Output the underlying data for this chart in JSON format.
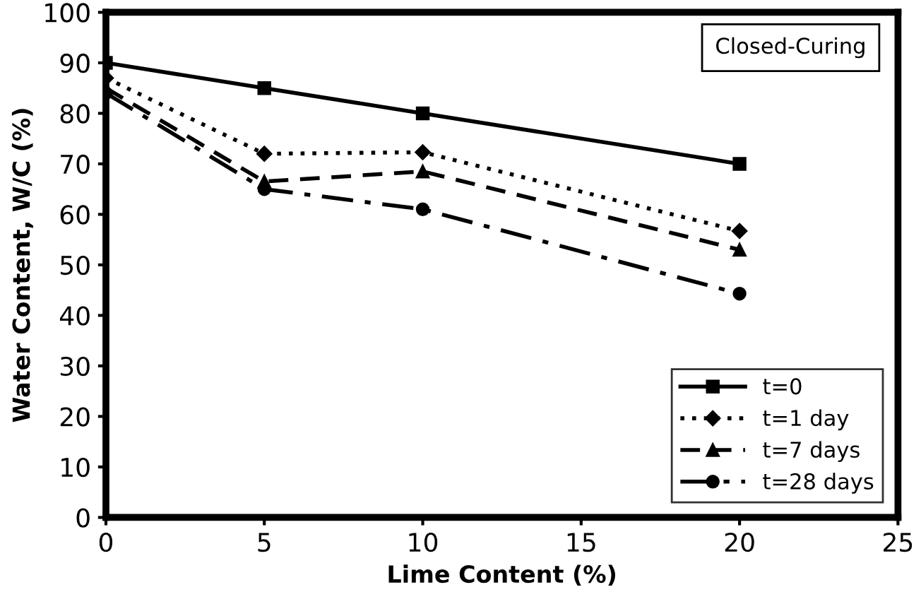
{
  "chart_data": {
    "type": "line",
    "xlabel": "Lime Content (%)",
    "ylabel": "Water Content, W/C (%)",
    "x": [
      0,
      5,
      10,
      20
    ],
    "series": [
      {
        "name": "t=0",
        "color": "#000000",
        "values": [
          90,
          85,
          80,
          70
        ],
        "marker": "square",
        "line_style": "solid"
      },
      {
        "name": "t=1 day",
        "color": "#000000",
        "values": [
          87,
          72,
          72.3,
          56.7
        ],
        "marker": "diamond",
        "line_style": "dotted"
      },
      {
        "name": "t=7 days",
        "color": "#000000",
        "values": [
          85,
          66.5,
          68.5,
          53
        ],
        "marker": "triangle",
        "line_style": "dashed"
      },
      {
        "name": "t=28 days",
        "color": "#000000",
        "values": [
          84,
          65,
          61,
          44.3
        ],
        "marker": "circle",
        "line_style": "dashdot"
      }
    ],
    "xlim": [
      0,
      25
    ],
    "xticks": [
      0,
      5,
      10,
      15,
      20,
      25
    ],
    "ylim": [
      0,
      100
    ],
    "yticks": [
      0,
      10,
      20,
      30,
      40,
      50,
      60,
      70,
      80,
      90,
      100
    ],
    "annotations": [
      "Closed-Curing"
    ],
    "grid": false,
    "legend": "bottom right"
  }
}
